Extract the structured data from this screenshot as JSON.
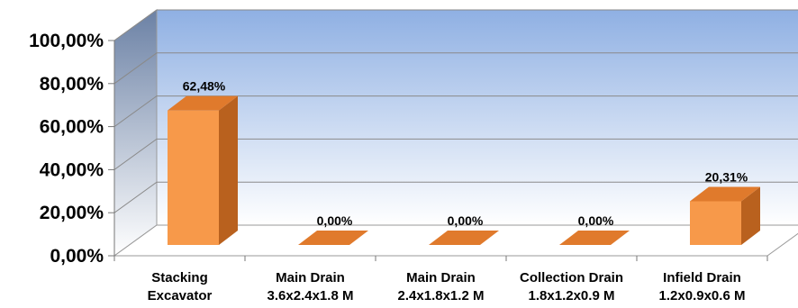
{
  "chart_data": {
    "type": "bar",
    "style": "3d-column",
    "categories": [
      [
        "Stacking",
        "Excavator"
      ],
      [
        "Main Drain",
        "3.6x2.4x1.8 M"
      ],
      [
        "Main Drain",
        "2.4x1.8x1.2 M"
      ],
      [
        "Collection Drain",
        "1.8x1.2x0.9 M"
      ],
      [
        "Infield Drain",
        "1.2x0.9x0.6 M"
      ]
    ],
    "values": [
      62.48,
      0.0,
      0.0,
      0.0,
      20.31
    ],
    "data_labels": [
      "62,48%",
      "0,00%",
      "0,00%",
      "0,00%",
      "20,31%"
    ],
    "yticks": [
      "0,00%",
      "20,00%",
      "40,00%",
      "60,00%",
      "80,00%",
      "100,00%"
    ],
    "ylim": [
      0,
      100
    ],
    "title": "",
    "xlabel": "",
    "ylabel": "",
    "grid": true,
    "legend": "none",
    "colors": {
      "bar_front": "#f7994a",
      "bar_top": "#e07a2c",
      "bar_side": "#b9611e",
      "wall_top": "#8fb0e3",
      "wall_bottom": "#ffffff",
      "side_wall": "#6b81a5",
      "floor": "#ffffff",
      "gridline": "#8a8a8a"
    }
  }
}
